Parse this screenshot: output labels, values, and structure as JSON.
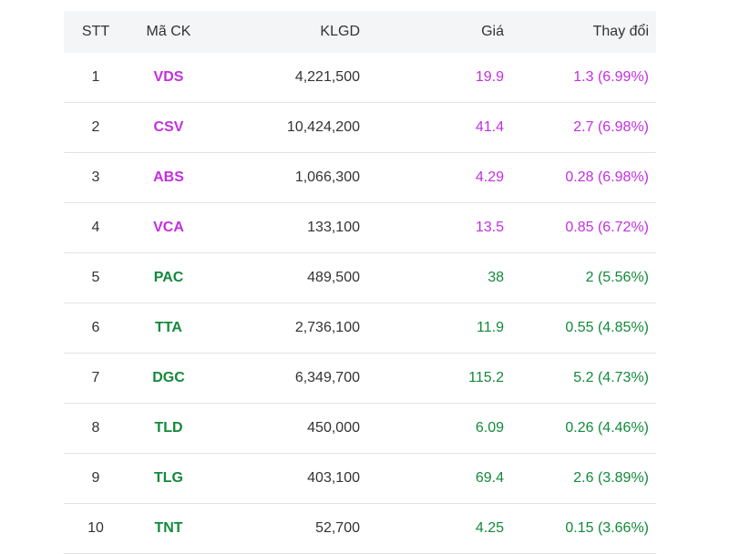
{
  "colors": {
    "ceiling": "#c32fe0",
    "up": "#128a3a"
  },
  "table": {
    "headers": {
      "stt": "STT",
      "code": "Mã CK",
      "volume": "KLGD",
      "price": "Giá",
      "change": "Thay đổi"
    },
    "rows": [
      {
        "stt": "1",
        "code": "VDS",
        "volume": "4,221,500",
        "price": "19.9",
        "change": "1.3 (6.99%)",
        "status": "ceiling"
      },
      {
        "stt": "2",
        "code": "CSV",
        "volume": "10,424,200",
        "price": "41.4",
        "change": "2.7 (6.98%)",
        "status": "ceiling"
      },
      {
        "stt": "3",
        "code": "ABS",
        "volume": "1,066,300",
        "price": "4.29",
        "change": "0.28 (6.98%)",
        "status": "ceiling"
      },
      {
        "stt": "4",
        "code": "VCA",
        "volume": "133,100",
        "price": "13.5",
        "change": "0.85 (6.72%)",
        "status": "ceiling"
      },
      {
        "stt": "5",
        "code": "PAC",
        "volume": "489,500",
        "price": "38",
        "change": "2 (5.56%)",
        "status": "up"
      },
      {
        "stt": "6",
        "code": "TTA",
        "volume": "2,736,100",
        "price": "11.9",
        "change": "0.55 (4.85%)",
        "status": "up"
      },
      {
        "stt": "7",
        "code": "DGC",
        "volume": "6,349,700",
        "price": "115.2",
        "change": "5.2 (4.73%)",
        "status": "up"
      },
      {
        "stt": "8",
        "code": "TLD",
        "volume": "450,000",
        "price": "6.09",
        "change": "0.26 (4.46%)",
        "status": "up"
      },
      {
        "stt": "9",
        "code": "TLG",
        "volume": "403,100",
        "price": "69.4",
        "change": "2.6 (3.89%)",
        "status": "up"
      },
      {
        "stt": "10",
        "code": "TNT",
        "volume": "52,700",
        "price": "4.25",
        "change": "0.15 (3.66%)",
        "status": "up"
      }
    ]
  }
}
